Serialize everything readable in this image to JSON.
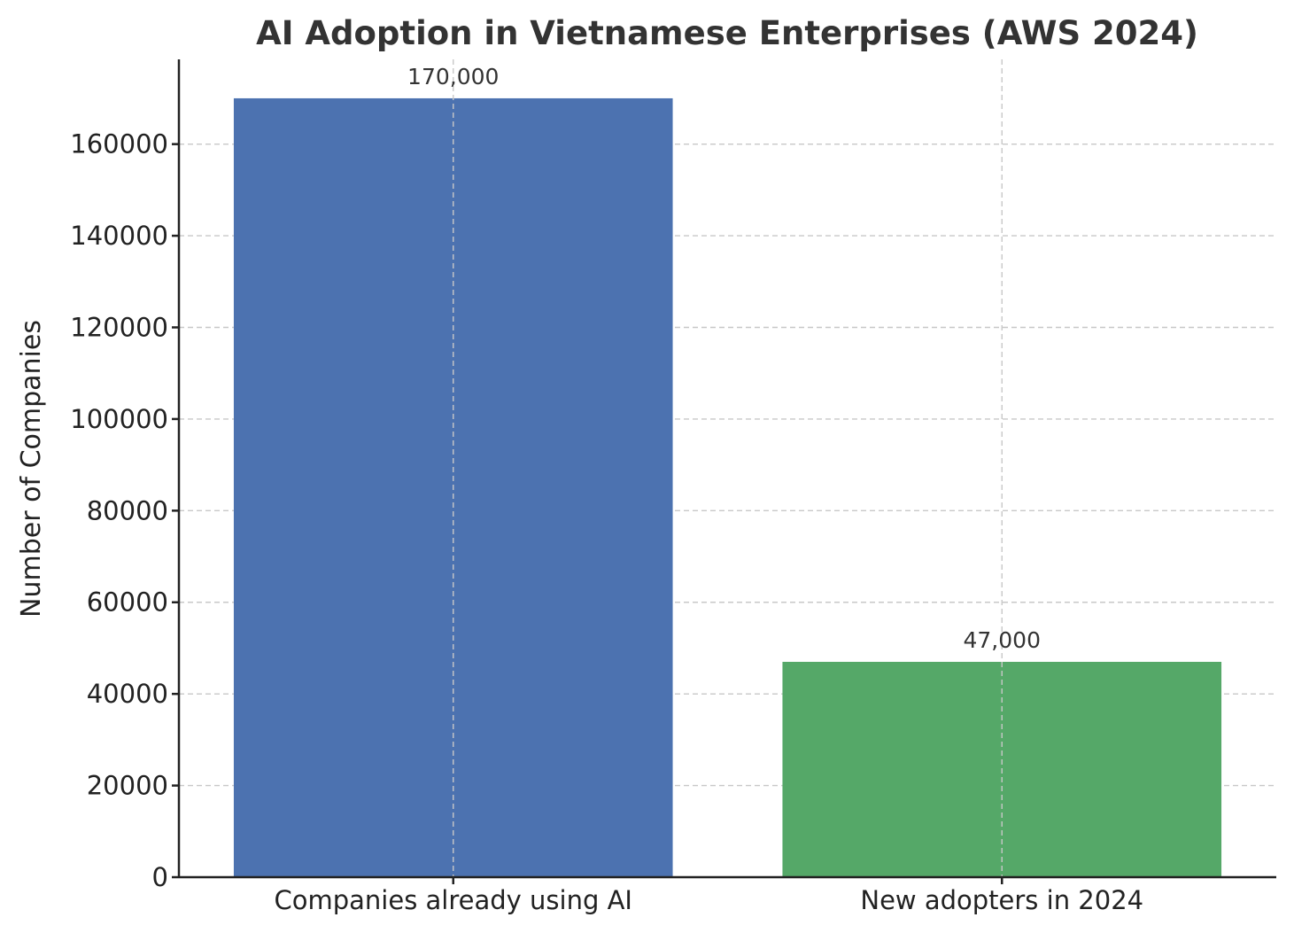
{
  "chart_data": {
    "type": "bar",
    "title": "AI Adoption in Vietnamese Enterprises (AWS 2024)",
    "xlabel": "",
    "ylabel": "Number of Companies",
    "categories": [
      "Companies already using AI",
      "New adopters in 2024"
    ],
    "values": [
      170000,
      47000
    ],
    "value_labels": [
      "170,000",
      "47,000"
    ],
    "bar_colors": [
      "#4c72b0",
      "#55a868"
    ],
    "ylim": [
      0,
      178500
    ],
    "yticks": [
      0,
      20000,
      40000,
      60000,
      80000,
      100000,
      120000,
      140000,
      160000
    ],
    "ytick_labels": [
      "0",
      "20000",
      "40000",
      "60000",
      "80000",
      "100000",
      "120000",
      "140000",
      "160000"
    ],
    "grid": true,
    "grid_style": "dashed",
    "legend": "none"
  }
}
